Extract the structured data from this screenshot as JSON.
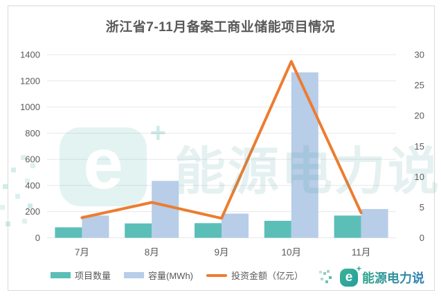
{
  "title": "浙江省7-11月备案工商业储能项目情况",
  "chart_data": {
    "type": "bar",
    "subtype": "dual-axis bar+line combo",
    "categories": [
      "7月",
      "8月",
      "9月",
      "10月",
      "11月"
    ],
    "series": [
      {
        "name": "项目数量",
        "type": "bar",
        "axis": "left",
        "color": "#5bbfb8",
        "values": [
          80,
          110,
          112,
          130,
          170
        ]
      },
      {
        "name": "容量(MWh)",
        "type": "bar",
        "axis": "left",
        "color": "#b7cde8",
        "values": [
          170,
          435,
          185,
          1265,
          220
        ]
      },
      {
        "name": "投资金额（亿元）",
        "type": "line",
        "axis": "right",
        "color": "#ed7c30",
        "values": [
          3.3,
          5.8,
          3.2,
          28.9,
          4.1
        ]
      }
    ],
    "title": "浙江省7-11月备案工商业储能项目情况",
    "xlabel": "",
    "ylabel_left": "",
    "ylabel_right": "",
    "left_axis": {
      "min": 0,
      "max": 1400,
      "step": 200,
      "ticks": [
        0,
        200,
        400,
        600,
        800,
        1000,
        1200,
        1400
      ]
    },
    "right_axis": {
      "min": 0,
      "max": 30,
      "step": 5,
      "ticks": [
        0,
        5,
        10,
        15,
        20,
        25,
        30
      ]
    },
    "grid": true,
    "legend_position": "bottom"
  },
  "legend": {
    "items": [
      {
        "label": "项目数量",
        "color": "#5bbfb8",
        "kind": "bar"
      },
      {
        "label": "容量(MWh)",
        "color": "#b7cde8",
        "kind": "bar"
      },
      {
        "label": "投资金额（亿元）",
        "color": "#ed7c30",
        "kind": "line"
      }
    ]
  },
  "watermark": {
    "letter": "e",
    "plus": "+",
    "text": "能源电力说"
  },
  "brand": {
    "letter": "e",
    "plus": "+",
    "text": "能源电力说"
  },
  "colors": {
    "bar_teal": "#5bbfb8",
    "bar_blue": "#b7cde8",
    "line_orange": "#ed7c30",
    "gridline": "#e7e7e7",
    "axis_text": "#595959",
    "title_text": "#595959",
    "card_border": "#d9d9d9"
  }
}
